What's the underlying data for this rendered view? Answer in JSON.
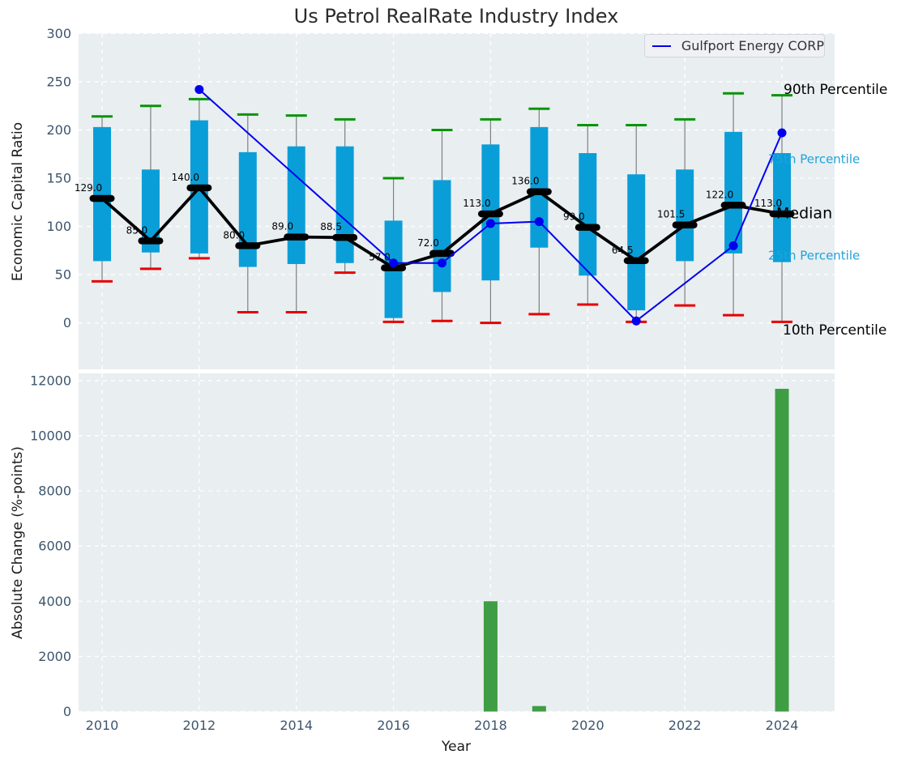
{
  "title": "Us Petrol RealRate Industry Index",
  "legend": {
    "label": "Gulfport Energy CORP"
  },
  "colors": {
    "box_bar": "#0a9ed8",
    "change_bar": "#3f9e44",
    "median": "#000000",
    "company_line": "#0000ee",
    "p90_cap": "#089408",
    "p10_cap": "#e60000",
    "whisker": "#808080",
    "plot_bg": "#e9eef1",
    "grid": "#ffffff",
    "tick_text": "#3d566e",
    "percentile_text": "#1fa3d9",
    "black_text": "#000000"
  },
  "chart_data": [
    {
      "type": "percentile-band-line",
      "title": "Us Petrol RealRate Industry Index",
      "ylabel": "Economic Capital Ratio",
      "yticks": [
        0,
        50,
        100,
        150,
        200,
        250,
        300
      ],
      "ylim": [
        -43,
        300
      ],
      "xticks": [
        2010,
        2012,
        2014,
        2016,
        2018,
        2020,
        2022,
        2024
      ],
      "years": [
        2010,
        2011,
        2012,
        2013,
        2014,
        2015,
        2016,
        2017,
        2018,
        2019,
        2020,
        2021,
        2022,
        2023,
        2024
      ],
      "p10": [
        43,
        56,
        67,
        11,
        11,
        52,
        1,
        2,
        0,
        9,
        19,
        1,
        18,
        8,
        1
      ],
      "p25": [
        64,
        73,
        72,
        58,
        61,
        62,
        5,
        32,
        44,
        78,
        49,
        13,
        64,
        72,
        63
      ],
      "median": [
        129.0,
        85.0,
        140.0,
        80.0,
        89.0,
        88.5,
        57.0,
        72.0,
        113.0,
        136.0,
        99.0,
        64.5,
        101.5,
        122.0,
        113.0
      ],
      "median_labels": [
        "129.0",
        "85.0",
        "140.0",
        "80.0",
        "89.0",
        "88.5",
        "57.0",
        "72.0",
        "113.0",
        "136.0",
        "99.0",
        "64.5",
        "101.5",
        "122.0",
        "113.0"
      ],
      "p75": [
        203,
        159,
        210,
        177,
        183,
        183,
        106,
        148,
        185,
        203,
        176,
        154,
        159,
        198,
        176
      ],
      "p90": [
        214,
        225,
        232,
        216,
        215,
        211,
        150,
        200,
        211,
        222,
        205,
        205,
        211,
        238,
        236
      ],
      "series": [
        {
          "name": "Gulfport Energy CORP",
          "x": [
            2012,
            2016,
            2017,
            2018,
            2019,
            2021,
            2023,
            2024
          ],
          "y": [
            242,
            62,
            62,
            103,
            105,
            2,
            80,
            197
          ]
        }
      ],
      "annotations": [
        {
          "label": "90th Percentile",
          "x": 967,
          "y": 110,
          "color": "black",
          "size": 17
        },
        {
          "label": "75th Percentile",
          "x": 948,
          "y": 196,
          "color": "cyan",
          "size": 15
        },
        {
          "label": "Median",
          "x": 958,
          "y": 263,
          "color": "black",
          "size": 19
        },
        {
          "label": "25th Percentile",
          "x": 948,
          "y": 315,
          "color": "cyan",
          "size": 15
        },
        {
          "label": "10th Percentile",
          "x": 966,
          "y": 407,
          "color": "black",
          "size": 17
        }
      ],
      "legend_label": "Gulfport Energy CORP",
      "legend_position": "upper right",
      "grid": true
    },
    {
      "type": "bar",
      "ylabel": "Absolute Change (%-points)",
      "xlabel": "Year",
      "yticks": [
        0,
        2000,
        4000,
        6000,
        8000,
        10000,
        12000
      ],
      "ylim": [
        0,
        12300
      ],
      "xticks": [
        2010,
        2012,
        2014,
        2016,
        2018,
        2020,
        2022,
        2024
      ],
      "years": [
        2010,
        2011,
        2012,
        2013,
        2014,
        2015,
        2016,
        2017,
        2018,
        2019,
        2020,
        2021,
        2022,
        2023,
        2024
      ],
      "values": [
        0,
        0,
        0,
        0,
        0,
        0,
        0,
        0,
        4000,
        200,
        0,
        0,
        0,
        0,
        11700
      ],
      "grid": true
    }
  ]
}
